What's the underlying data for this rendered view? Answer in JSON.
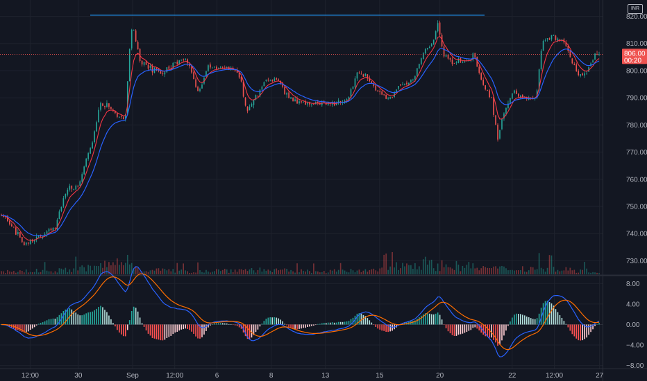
{
  "chart_data": [
    {
      "type": "candlestick",
      "currency": "INR",
      "ylim": [
        725,
        826
      ],
      "y_ticks": [
        730,
        740,
        750,
        760,
        770,
        780,
        790,
        800,
        810,
        820
      ],
      "y_tick_labels": [
        "730.00",
        "740.00",
        "750.00",
        "760.00",
        "770.00",
        "780.00",
        "790.00",
        "800.00",
        "810.00",
        "820.00"
      ],
      "x_tick_labels": [
        "12:00",
        "30",
        "Sep",
        "12:00",
        "6",
        "8",
        "13",
        "15",
        "20",
        "22",
        "12:00",
        "27"
      ],
      "x_tick_positions": [
        0.05,
        0.13,
        0.22,
        0.29,
        0.36,
        0.45,
        0.54,
        0.63,
        0.73,
        0.85,
        0.92,
        0.995
      ],
      "last_price_label": "806.00",
      "countdown_label": "00:20",
      "last_price": 806.0,
      "horizontal_line_level": 820.4,
      "close_profile": [
        [
          0.0,
          747
        ],
        [
          0.02,
          742
        ],
        [
          0.04,
          735
        ],
        [
          0.055,
          738
        ],
        [
          0.075,
          741
        ],
        [
          0.09,
          742
        ],
        [
          0.1,
          750
        ],
        [
          0.11,
          757
        ],
        [
          0.13,
          757
        ],
        [
          0.145,
          770
        ],
        [
          0.155,
          776
        ],
        [
          0.165,
          788
        ],
        [
          0.18,
          787
        ],
        [
          0.2,
          782
        ],
        [
          0.208,
          784
        ],
        [
          0.215,
          810
        ],
        [
          0.22,
          817
        ],
        [
          0.232,
          804
        ],
        [
          0.25,
          801
        ],
        [
          0.27,
          799
        ],
        [
          0.29,
          803
        ],
        [
          0.31,
          804
        ],
        [
          0.33,
          792
        ],
        [
          0.345,
          801
        ],
        [
          0.365,
          801
        ],
        [
          0.385,
          801
        ],
        [
          0.4,
          798
        ],
        [
          0.41,
          785
        ],
        [
          0.425,
          790
        ],
        [
          0.44,
          796
        ],
        [
          0.46,
          797
        ],
        [
          0.48,
          790
        ],
        [
          0.5,
          788
        ],
        [
          0.52,
          788
        ],
        [
          0.54,
          788
        ],
        [
          0.56,
          788
        ],
        [
          0.58,
          790
        ],
        [
          0.595,
          799
        ],
        [
          0.61,
          798
        ],
        [
          0.63,
          792
        ],
        [
          0.65,
          790
        ],
        [
          0.67,
          795
        ],
        [
          0.69,
          796
        ],
        [
          0.705,
          807
        ],
        [
          0.72,
          810
        ],
        [
          0.73,
          818
        ],
        [
          0.74,
          806
        ],
        [
          0.755,
          803
        ],
        [
          0.775,
          803
        ],
        [
          0.79,
          806
        ],
        [
          0.805,
          795
        ],
        [
          0.82,
          790
        ],
        [
          0.83,
          775
        ],
        [
          0.84,
          784
        ],
        [
          0.855,
          792
        ],
        [
          0.875,
          790
        ],
        [
          0.895,
          790
        ],
        [
          0.905,
          811
        ],
        [
          0.925,
          813
        ],
        [
          0.945,
          809
        ],
        [
          0.965,
          798
        ],
        [
          0.98,
          799
        ],
        [
          0.993,
          806
        ],
        [
          1.0,
          806
        ]
      ],
      "volume_profile": [
        [
          0.0,
          0.18
        ],
        [
          0.1,
          0.25
        ],
        [
          0.16,
          0.45
        ],
        [
          0.21,
          0.9
        ],
        [
          0.23,
          0.35
        ],
        [
          0.3,
          0.2
        ],
        [
          0.42,
          0.3
        ],
        [
          0.5,
          0.2
        ],
        [
          0.62,
          0.22
        ],
        [
          0.7,
          0.8
        ],
        [
          0.72,
          0.6
        ],
        [
          0.76,
          0.55
        ],
        [
          0.83,
          0.35
        ],
        [
          0.9,
          0.4
        ],
        [
          1.0,
          0.18
        ]
      ]
    },
    {
      "type": "macd",
      "ylim": [
        -8.6,
        9.4
      ],
      "y_ticks": [
        8,
        4,
        0,
        -4,
        -8
      ],
      "y_tick_labels": [
        "8.00",
        "4.00",
        "0.00",
        "−4.00",
        "−8.00"
      ],
      "series_colors": {
        "macd": "#2962ff",
        "signal": "#ff6d00"
      }
    }
  ]
}
